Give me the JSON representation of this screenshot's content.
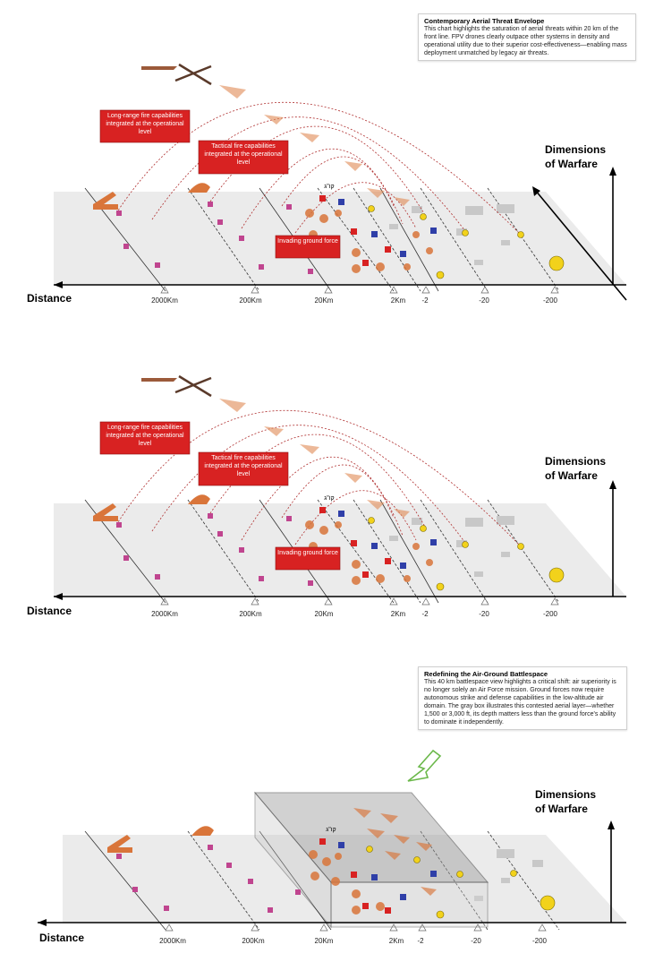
{
  "colors": {
    "accent_red": "#d82222",
    "ground_plane": "#e9e9e9",
    "friendly_marker": "#c0458f",
    "enemy_marker": "#2f3fa8",
    "hostile_marker": "#d82222",
    "threat_marker": "#f2d21b",
    "terrain_gray": "#bdbdbd",
    "unit_orange": "#d9753a",
    "arrow_green": "#6bb84a"
  },
  "icons": [
    "rocket-launcher-icon",
    "artillery-icon",
    "drone-icon",
    "jet-icon",
    "soldier-icon",
    "helicopter-icon"
  ],
  "axes": {
    "x_label": "Distance",
    "y_label_line1": "Dimensions",
    "y_label_line2": "of Warfare",
    "ticks": [
      "2000Km",
      "200Km",
      "20Km",
      "2Km",
      "-2",
      "-20",
      "-200"
    ],
    "hebrew_label": "קו\"ג"
  },
  "panel1": {
    "note_title": "Contemporary Aerial Threat Envelope",
    "note_body": "This chart highlights the saturation of aerial threats within 20 km of the front line. FPV drones clearly outpace other systems in density and operational utility due to their superior cost-effectiveness—enabling mass deployment unmatched by legacy air threats.",
    "callout_long_range": "Long-range fire capabilities integrated at the operational level",
    "callout_tactical": "Tactical fire capabilities integrated at the operational level",
    "callout_ground": "Invading ground force"
  },
  "panel2": {
    "callout_long_range": "Long-range fire capabilities integrated at the operational level",
    "callout_tactical": "Tactical fire capabilities integrated at the operational level",
    "callout_ground": "Invading ground force"
  },
  "panel3": {
    "note_title": "Redefining the Air-Ground Battlespace",
    "note_body": "This 40 km battlespace view highlights a critical shift: air superiority is no longer solely an Air Force mission. Ground forces now require autonomous strike and defense capabilities in the low-altitude air domain. The gray box illustrates this contested aerial layer—whether 1,500 or 3,000 ft, its depth matters less than the ground force's ability to dominate it independently."
  }
}
